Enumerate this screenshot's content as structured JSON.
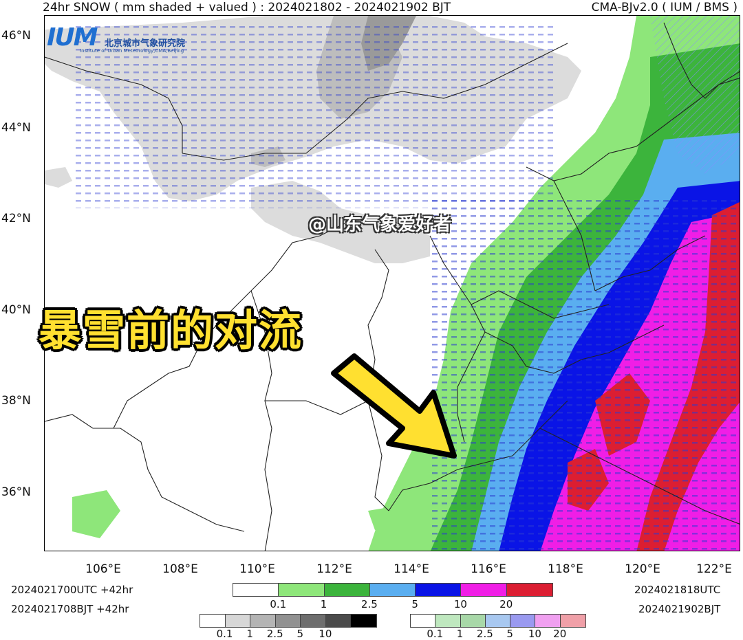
{
  "header": {
    "title_left": "24hr SNOW ( mm shaded + valued ) : 2024021802 - 2024021902 BJT",
    "title_right": "CMA-BJv2.0 ( IUM / BMS )"
  },
  "logo": {
    "mark": "IUM",
    "name_cn": "北京城市气象研究院",
    "name_en": "Institute of Urban Meteorology,CMA,Beijing"
  },
  "watermark": "@山东气象爱好者",
  "overlay_title": "暴雪前的对流",
  "lat_labels": [
    "46°N",
    "44°N",
    "42°N",
    "40°N",
    "38°N",
    "36°N"
  ],
  "lon_labels": [
    "106°E",
    "108°E",
    "110°E",
    "112°E",
    "114°E",
    "116°E",
    "118°E",
    "120°E",
    "122°E"
  ],
  "info": {
    "init_utc": "2024021700UTC  +42hr",
    "init_bjt": "2024021708BJT  +42hr",
    "valid_utc": "2024021818UTC",
    "valid_bjt": "2024021902BJT"
  },
  "legend_main": {
    "colors": [
      "#ffffff",
      "#8ee67a",
      "#3cb43c",
      "#5aaef0",
      "#0a14e6",
      "#f01ee6",
      "#dc1e32"
    ],
    "ticks": [
      "0.1",
      "1",
      "2.5",
      "5",
      "10",
      "20"
    ]
  },
  "legend_gray": {
    "colors": [
      "#ffffff",
      "#d7d7d7",
      "#b4b4b4",
      "#919191",
      "#6e6e6e",
      "#4b4b4b",
      "#000000"
    ],
    "ticks": [
      "0.1",
      "1",
      "2.5",
      "5",
      "10"
    ]
  },
  "legend_hatch": {
    "colors": [
      "#ffffff",
      "#bfe8bf",
      "#a8d8a8",
      "#a8c8f0",
      "#9a9af0",
      "#f0a0f0",
      "#f0a0a8"
    ],
    "ticks": [
      "0.1",
      "1",
      "2.5",
      "5",
      "10",
      "20"
    ]
  },
  "arrow_color": "#ffe030",
  "chart_data": {
    "type": "heatmap",
    "title": "24hr SNOW ( mm shaded + valued ) : 2024021802 - 2024021902 BJT",
    "x_range_deg_e": [
      104.3,
      122.3
    ],
    "y_range_deg_n": [
      34.7,
      46.5
    ],
    "x_ticks": [
      "106°E",
      "108°E",
      "110°E",
      "112°E",
      "114°E",
      "116°E",
      "118°E",
      "120°E",
      "122°E"
    ],
    "y_ticks": [
      "46°N",
      "44°N",
      "42°N",
      "40°N",
      "38°N",
      "36°N"
    ],
    "color_levels_mm": [
      0.1,
      1,
      2.5,
      5,
      10,
      20
    ]
  }
}
